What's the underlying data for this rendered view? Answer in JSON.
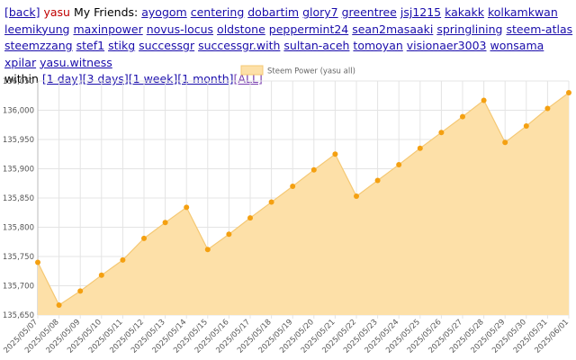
{
  "nav": {
    "back_label": "[back]",
    "self_name": "yasu",
    "friends_label": "My Friends:",
    "friends": [
      "ayogom",
      "centering",
      "dobartim",
      "glory7",
      "greentree",
      "jsj1215",
      "kakakk",
      "kolkamkwan",
      "leemikyung",
      "maxinpower",
      "novus-locus",
      "oldstone",
      "peppermint24",
      "sean2masaaki",
      "springlining",
      "steem-atlas",
      "steemzzang",
      "stef1",
      "stikg",
      "successgr",
      "successgr.with",
      "sultan-aceh",
      "tomoyan",
      "visionaer3003",
      "wonsama",
      "xpilar",
      "yasu.witness"
    ],
    "within_label": "within",
    "ranges": [
      "[1 day]",
      "[3 days]",
      "[1 week]",
      "[1 month]",
      "[ALL]"
    ]
  },
  "chart_data": {
    "type": "area",
    "legend": "Steem Power (yasu all)",
    "x": [
      "2025/05/07",
      "2025/05/08",
      "2025/05/09",
      "2025/05/10",
      "2025/05/11",
      "2025/05/12",
      "2025/05/13",
      "2025/05/14",
      "2025/05/15",
      "2025/05/16",
      "2025/05/17",
      "2025/05/18",
      "2025/05/19",
      "2025/05/20",
      "2025/05/21",
      "2025/05/22",
      "2025/05/23",
      "2025/05/24",
      "2025/05/25",
      "2025/05/26",
      "2025/05/27",
      "2025/05/28",
      "2025/05/29",
      "2025/05/30",
      "2025/05/31",
      "2025/06/01"
    ],
    "values": [
      135740,
      135667,
      135691,
      135718,
      135744,
      135781,
      135808,
      135834,
      135762,
      135788,
      135816,
      135843,
      135870,
      135898,
      135925,
      135853,
      135880,
      135907,
      135935,
      135962,
      135989,
      136017,
      135945,
      135973,
      136003,
      136030
    ],
    "yticks": [
      135650,
      135700,
      135750,
      135800,
      135850,
      135900,
      135950,
      136000,
      136050
    ],
    "ylim": [
      135650,
      136050
    ],
    "grid": true,
    "legend_position": "top-center",
    "colors": {
      "fill": "#fde0a8",
      "line": "#f5c873",
      "point": "#f4a011"
    }
  }
}
